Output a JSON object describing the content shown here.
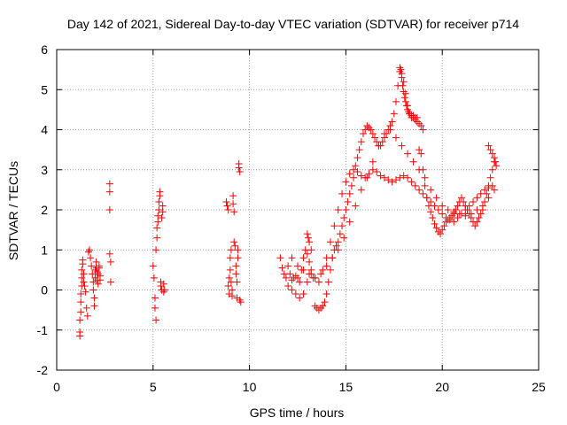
{
  "chart_data": {
    "type": "scatter",
    "title": "Day 142 of 2021, Sidereal Day-to-day VTEC variation (SDTVAR) for receiver p714",
    "xlabel": "GPS time / hours",
    "ylabel": "SDTVAR / TECUs",
    "xlim": [
      0,
      25
    ],
    "ylim": [
      -2,
      6
    ],
    "xticks": [
      0,
      5,
      10,
      15,
      20,
      25
    ],
    "yticks": [
      -2,
      -1,
      0,
      1,
      2,
      3,
      4,
      5,
      6
    ],
    "xtick_labels": [
      "0",
      "5",
      "10",
      "15",
      "20",
      "25"
    ],
    "ytick_labels": [
      "-2",
      "-1",
      "0",
      "1",
      "2",
      "3",
      "4",
      "5",
      "6"
    ],
    "grid": true,
    "marker": "+",
    "color": "#ff0000",
    "series": [
      {
        "name": "SDTVAR",
        "x": [
          1.2,
          1.2,
          1.2,
          1.25,
          1.25,
          1.25,
          1.3,
          1.3,
          1.3,
          1.35,
          1.35,
          1.4,
          1.4,
          1.45,
          1.5,
          1.55,
          1.6,
          1.65,
          1.7,
          1.75,
          1.8,
          1.85,
          1.9,
          1.9,
          1.95,
          1.95,
          2.0,
          2.0,
          2.05,
          2.05,
          2.1,
          2.1,
          2.15,
          2.15,
          2.2,
          2.2,
          2.25,
          2.25,
          2.75,
          2.75,
          2.75,
          2.75,
          2.8,
          2.8,
          5.0,
          5.05,
          5.1,
          5.1,
          5.15,
          5.15,
          5.2,
          5.2,
          5.25,
          5.25,
          5.3,
          5.3,
          5.35,
          5.35,
          5.4,
          5.4,
          5.45,
          5.45,
          5.5,
          5.5,
          5.55,
          5.55,
          5.6,
          8.8,
          8.85,
          8.9,
          8.9,
          8.95,
          8.95,
          9.0,
          9.0,
          9.05,
          9.05,
          9.1,
          9.1,
          9.15,
          9.15,
          9.2,
          9.2,
          9.25,
          9.3,
          9.3,
          9.35,
          9.35,
          9.4,
          9.4,
          9.45,
          9.45,
          9.5,
          9.5,
          9.55,
          11.6,
          11.7,
          11.8,
          11.9,
          12.0,
          12.1,
          12.2,
          12.3,
          12.4,
          12.5,
          12.6,
          12.7,
          12.8,
          12.9,
          13.0,
          13.1,
          13.2,
          13.3,
          13.4,
          13.5,
          13.6,
          13.7,
          13.8,
          13.9,
          14.0,
          14.1,
          14.2,
          14.3,
          14.4,
          14.5,
          14.6,
          14.7,
          14.8,
          14.9,
          15.0,
          15.1,
          15.2,
          15.3,
          15.4,
          15.5,
          15.6,
          15.7,
          15.8,
          15.9,
          16.0,
          16.1,
          16.2,
          16.3,
          16.4,
          16.5,
          16.6,
          16.7,
          16.8,
          16.9,
          17.0,
          17.1,
          17.2,
          17.3,
          17.4,
          17.5,
          17.6,
          17.7,
          17.8,
          17.9,
          18.0,
          18.1,
          18.2,
          18.3,
          18.4,
          18.5,
          18.6,
          18.7,
          18.8,
          18.9,
          19.0,
          19.1,
          19.2,
          19.3,
          19.4,
          19.5,
          19.6,
          19.7,
          19.8,
          19.9,
          20.0,
          20.1,
          20.2,
          20.3,
          20.4,
          20.5,
          20.6,
          20.7,
          20.8,
          20.9,
          21.0,
          21.1,
          21.2,
          21.3,
          21.4,
          21.5,
          21.6,
          21.7,
          21.8,
          21.9,
          22.0,
          22.1,
          22.2,
          22.3,
          22.4,
          22.5,
          22.6,
          22.7,
          12.0,
          12.2,
          12.4,
          12.6,
          12.8,
          13.0,
          13.2,
          13.4,
          13.6,
          13.8,
          14.0,
          14.2,
          14.4,
          14.6,
          14.8,
          15.0,
          15.2,
          15.4,
          15.6,
          15.8,
          16.0,
          16.2,
          16.4,
          16.6,
          16.8,
          17.0,
          17.2,
          17.4,
          17.6,
          17.8,
          18.0,
          18.2,
          18.4,
          18.6,
          18.8,
          19.0,
          19.2,
          19.4,
          19.6,
          19.8,
          20.0,
          20.2,
          20.4,
          20.6,
          20.8,
          21.0,
          21.2,
          21.4,
          21.6,
          21.8,
          22.0,
          22.2,
          22.4,
          22.6,
          12.2,
          12.5,
          12.8,
          13.1,
          13.4,
          13.7,
          14.0,
          14.3,
          14.6,
          14.9,
          15.2,
          15.5,
          15.8,
          16.1,
          16.4,
          16.7,
          17.0,
          17.3,
          17.6,
          17.9,
          18.2,
          18.5,
          18.8,
          19.1,
          19.4,
          19.7,
          20.0,
          20.3,
          20.6,
          20.9,
          21.2,
          21.5,
          21.8,
          22.1,
          22.4,
          22.7,
          17.8,
          17.85,
          17.9,
          17.95,
          18.0,
          18.05,
          18.1,
          18.15,
          18.2,
          18.25,
          18.3,
          18.4,
          18.5,
          18.6,
          18.7,
          18.8,
          18.9,
          19.0,
          13.0,
          13.05,
          13.1,
          13.2,
          22.4,
          22.5,
          22.6,
          22.7,
          22.75,
          22.8
        ],
        "y": [
          -1.15,
          -1.05,
          -0.75,
          -0.55,
          -0.3,
          -0.1,
          0.1,
          0.3,
          0.5,
          0.65,
          0.75,
          0.4,
          0.2,
          0.1,
          -0.05,
          -0.45,
          -0.65,
          0.95,
          1.0,
          0.8,
          0.6,
          0.4,
          0.2,
          0.0,
          -0.2,
          -0.4,
          0.3,
          0.5,
          0.7,
          0.55,
          0.45,
          0.25,
          0.15,
          0.4,
          0.55,
          0.6,
          0.35,
          0.25,
          2.65,
          2.45,
          2.0,
          0.9,
          0.7,
          0.2,
          0.6,
          0.3,
          -0.2,
          -0.45,
          -0.75,
          1.0,
          1.3,
          1.55,
          1.7,
          1.85,
          2.0,
          2.2,
          2.35,
          2.45,
          0.2,
          0.1,
          0.0,
          1.8,
          1.95,
          2.1,
          0.15,
          -0.05,
          0.0,
          2.2,
          2.1,
          2.0,
          0.1,
          -0.1,
          0.3,
          0.5,
          0.8,
          1.0,
          0.2,
          0.0,
          -0.15,
          2.35,
          2.15,
          1.95,
          1.2,
          1.1,
          0.6,
          0.4,
          0.2,
          -0.2,
          1.0,
          0.8,
          3.15,
          3.05,
          2.95,
          -0.25,
          -0.3,
          0.8,
          0.55,
          0.4,
          0.3,
          0.6,
          0.4,
          0.25,
          0.3,
          0.35,
          0.3,
          0.2,
          0.5,
          0.8,
          1.0,
          0.9,
          0.7,
          0.5,
          0.3,
          -0.4,
          -0.45,
          -0.5,
          -0.45,
          -0.4,
          -0.3,
          -0.1,
          0.2,
          0.5,
          0.8,
          1.0,
          1.1,
          1.2,
          1.4,
          1.6,
          1.8,
          2.0,
          2.2,
          2.4,
          2.6,
          2.8,
          3.1,
          3.3,
          3.5,
          3.7,
          3.9,
          4.0,
          4.1,
          4.05,
          4.0,
          3.9,
          3.8,
          3.7,
          3.6,
          3.6,
          3.7,
          3.8,
          3.9,
          4.0,
          4.1,
          4.2,
          4.4,
          4.7,
          5.1,
          5.45,
          5.4,
          5.2,
          4.9,
          4.6,
          4.4,
          4.3,
          4.35,
          4.3,
          4.3,
          3.5,
          3.4,
          3.0,
          2.6,
          2.3,
          2.1,
          1.95,
          1.8,
          1.65,
          1.55,
          1.45,
          1.4,
          1.5,
          1.6,
          1.7,
          1.75,
          1.8,
          1.85,
          1.9,
          2.0,
          2.1,
          2.2,
          2.3,
          2.2,
          2.1,
          2.0,
          1.9,
          1.8,
          1.7,
          1.6,
          1.7,
          1.8,
          1.9,
          2.0,
          2.2,
          2.4,
          2.6,
          2.8,
          3.0,
          3.2,
          0.1,
          0.0,
          -0.1,
          -0.2,
          -0.1,
          0.2,
          0.4,
          0.3,
          0.2,
          0.5,
          0.8,
          1.2,
          1.6,
          2.0,
          2.4,
          2.7,
          2.9,
          3.0,
          2.95,
          2.85,
          2.8,
          2.9,
          3.0,
          2.95,
          2.85,
          2.8,
          2.75,
          2.7,
          2.75,
          2.8,
          2.85,
          2.8,
          2.7,
          2.6,
          2.5,
          2.4,
          2.3,
          2.2,
          2.1,
          2.0,
          1.9,
          1.8,
          1.75,
          1.7,
          1.8,
          1.9,
          2.0,
          2.1,
          2.2,
          2.3,
          2.4,
          2.5,
          2.55,
          2.6,
          0.8,
          0.6,
          0.5,
          0.4,
          0.3,
          0.4,
          0.6,
          0.8,
          1.0,
          1.3,
          1.7,
          2.1,
          2.5,
          2.8,
          3.2,
          3.6,
          3.9,
          4.0,
          3.8,
          3.6,
          3.4,
          3.2,
          3.0,
          2.8,
          2.5,
          2.3,
          2.1,
          2.0,
          1.95,
          1.9,
          1.85,
          1.9,
          2.0,
          2.1,
          2.3,
          2.5,
          5.55,
          5.5,
          5.3,
          5.1,
          4.95,
          4.8,
          4.7,
          4.6,
          4.5,
          4.45,
          4.4,
          4.35,
          4.3,
          4.25,
          4.2,
          4.15,
          4.1,
          4.0,
          1.4,
          1.3,
          1.2,
          1.0,
          3.6,
          3.5,
          3.4,
          3.3,
          3.2,
          3.1
        ]
      }
    ]
  }
}
